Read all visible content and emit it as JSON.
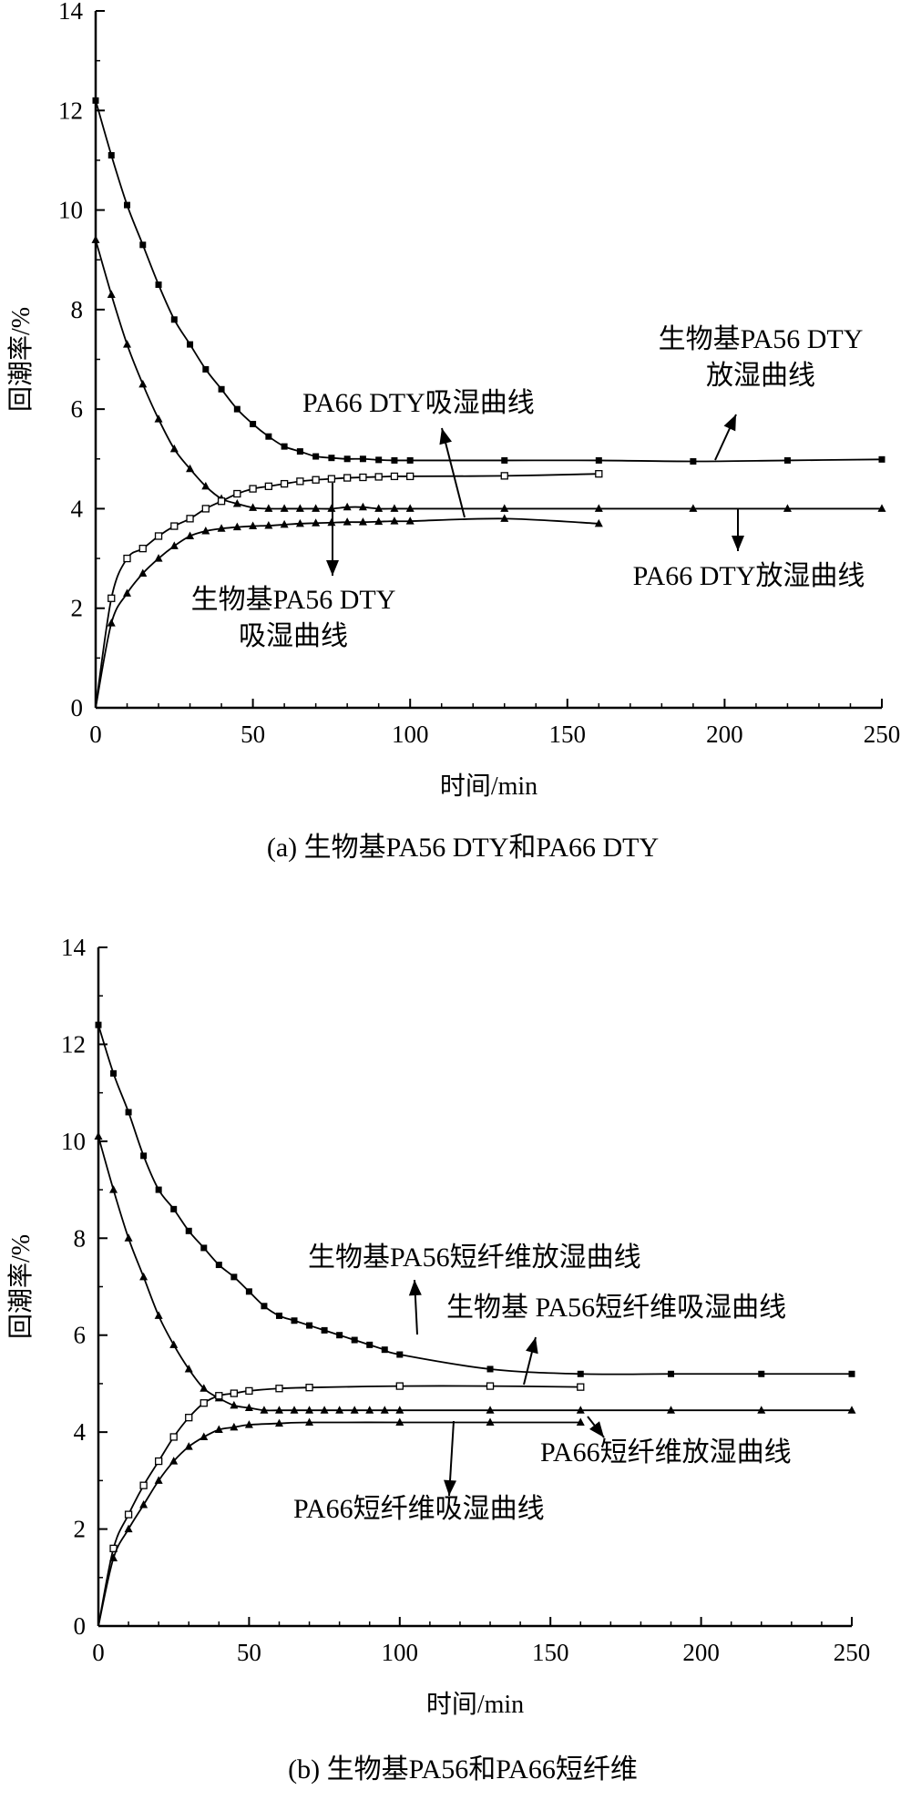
{
  "chart_data": [
    {
      "type": "line",
      "caption": "(a) 生物基PA56 DTY和PA66 DTY",
      "xlabel": "时间/min",
      "ylabel": "回潮率/%",
      "xlim": [
        0,
        250
      ],
      "ylim": [
        0,
        14
      ],
      "x_ticks": [
        "0",
        "50",
        "100",
        "150",
        "200",
        "250"
      ],
      "y_ticks": [
        "0",
        "2",
        "4",
        "6",
        "8",
        "10",
        "12",
        "14"
      ],
      "grid": false,
      "series": [
        {
          "marker": "filled-square",
          "x": [
            0,
            5,
            10,
            15,
            20,
            25,
            30,
            35,
            40,
            45,
            50,
            55,
            60,
            65,
            70,
            75,
            80,
            85,
            90,
            95,
            100,
            130,
            160,
            190,
            220,
            250
          ],
          "y": [
            12.2,
            11.1,
            10.1,
            9.3,
            8.5,
            7.8,
            7.3,
            6.8,
            6.4,
            6.0,
            5.7,
            5.45,
            5.25,
            5.15,
            5.05,
            5.02,
            5.0,
            5.0,
            4.98,
            4.97,
            4.97,
            4.97,
            4.97,
            4.95,
            4.97,
            4.99
          ]
        },
        {
          "marker": "filled-triangle",
          "x": [
            0,
            5,
            10,
            15,
            20,
            25,
            30,
            35,
            40,
            45,
            50,
            55,
            60,
            65,
            70,
            75,
            80,
            85,
            90,
            95,
            100,
            130,
            160,
            190,
            220,
            250
          ],
          "y": [
            9.4,
            8.3,
            7.3,
            6.5,
            5.8,
            5.2,
            4.8,
            4.45,
            4.2,
            4.1,
            4.02,
            4.0,
            4.0,
            4.0,
            4.0,
            4.0,
            4.03,
            4.03,
            4.0,
            4.0,
            4.0,
            4.0,
            4.0,
            4.0,
            4.0,
            4.0
          ]
        },
        {
          "marker": "open-square",
          "x": [
            0,
            5,
            10,
            15,
            20,
            25,
            30,
            35,
            40,
            45,
            50,
            55,
            60,
            65,
            70,
            75,
            80,
            85,
            90,
            95,
            100,
            130,
            160
          ],
          "y": [
            0,
            2.2,
            3.0,
            3.2,
            3.45,
            3.65,
            3.8,
            4.0,
            4.15,
            4.3,
            4.4,
            4.45,
            4.5,
            4.55,
            4.58,
            4.6,
            4.62,
            4.63,
            4.64,
            4.65,
            4.65,
            4.66,
            4.7
          ]
        },
        {
          "marker": "filled-triangle",
          "x": [
            0,
            5,
            10,
            15,
            20,
            25,
            30,
            35,
            40,
            45,
            50,
            55,
            60,
            65,
            70,
            75,
            80,
            85,
            90,
            95,
            100,
            130,
            160
          ],
          "y": [
            0,
            1.7,
            2.3,
            2.7,
            3.0,
            3.25,
            3.45,
            3.55,
            3.6,
            3.63,
            3.65,
            3.66,
            3.68,
            3.7,
            3.71,
            3.72,
            3.73,
            3.73,
            3.74,
            3.75,
            3.75,
            3.8,
            3.7
          ]
        }
      ],
      "annotations": [
        {
          "lines": [
            "生物基PA56 DTY",
            "放湿曲线"
          ]
        },
        {
          "lines": [
            "PA66 DTY吸湿曲线"
          ]
        },
        {
          "lines": [
            "生物基PA56 DTY",
            "吸湿曲线"
          ]
        },
        {
          "lines": [
            "PA66 DTY放湿曲线"
          ]
        }
      ]
    },
    {
      "type": "line",
      "caption": "(b) 生物基PA56和PA66短纤维",
      "xlabel": "时间/min",
      "ylabel": "回潮率/%",
      "xlim": [
        0,
        250
      ],
      "ylim": [
        0,
        14
      ],
      "x_ticks": [
        "0",
        "50",
        "100",
        "150",
        "200",
        "250"
      ],
      "y_ticks": [
        "0",
        "2",
        "4",
        "6",
        "8",
        "10",
        "12",
        "14"
      ],
      "grid": false,
      "series": [
        {
          "marker": "filled-square",
          "x": [
            0,
            5,
            10,
            15,
            20,
            25,
            30,
            35,
            40,
            45,
            50,
            55,
            60,
            65,
            70,
            75,
            80,
            85,
            90,
            95,
            100,
            130,
            160,
            190,
            220,
            250
          ],
          "y": [
            12.4,
            11.4,
            10.6,
            9.7,
            9.0,
            8.6,
            8.15,
            7.8,
            7.45,
            7.2,
            6.9,
            6.6,
            6.4,
            6.3,
            6.2,
            6.1,
            6.0,
            5.9,
            5.8,
            5.7,
            5.6,
            5.3,
            5.2,
            5.2,
            5.2,
            5.2
          ]
        },
        {
          "marker": "filled-triangle",
          "x": [
            0,
            5,
            10,
            15,
            20,
            25,
            30,
            35,
            40,
            45,
            50,
            55,
            60,
            65,
            70,
            75,
            80,
            85,
            90,
            95,
            100,
            130,
            160,
            190,
            220,
            250
          ],
          "y": [
            10.1,
            9.0,
            8.0,
            7.2,
            6.4,
            5.8,
            5.3,
            4.9,
            4.7,
            4.55,
            4.5,
            4.45,
            4.45,
            4.45,
            4.45,
            4.45,
            4.45,
            4.45,
            4.45,
            4.45,
            4.45,
            4.45,
            4.45,
            4.45,
            4.45,
            4.45
          ]
        },
        {
          "marker": "open-square",
          "x": [
            0,
            5,
            10,
            15,
            20,
            25,
            30,
            35,
            40,
            45,
            50,
            60,
            70,
            100,
            130,
            160
          ],
          "y": [
            0,
            1.6,
            2.3,
            2.9,
            3.4,
            3.9,
            4.3,
            4.6,
            4.75,
            4.8,
            4.85,
            4.9,
            4.92,
            4.95,
            4.95,
            4.93
          ]
        },
        {
          "marker": "filled-triangle",
          "x": [
            0,
            5,
            10,
            15,
            20,
            25,
            30,
            35,
            40,
            45,
            50,
            60,
            70,
            100,
            130,
            160
          ],
          "y": [
            0,
            1.4,
            2.0,
            2.5,
            3.0,
            3.4,
            3.7,
            3.9,
            4.05,
            4.1,
            4.15,
            4.18,
            4.2,
            4.2,
            4.2,
            4.2
          ]
        }
      ],
      "annotations": [
        {
          "lines": [
            "生物基PA56短纤维放湿曲线"
          ]
        },
        {
          "lines": [
            "生物基 PA56短纤维吸湿曲线"
          ]
        },
        {
          "lines": [
            "PA66短纤维放湿曲线"
          ]
        },
        {
          "lines": [
            "PA66短纤维吸湿曲线"
          ]
        }
      ]
    }
  ]
}
